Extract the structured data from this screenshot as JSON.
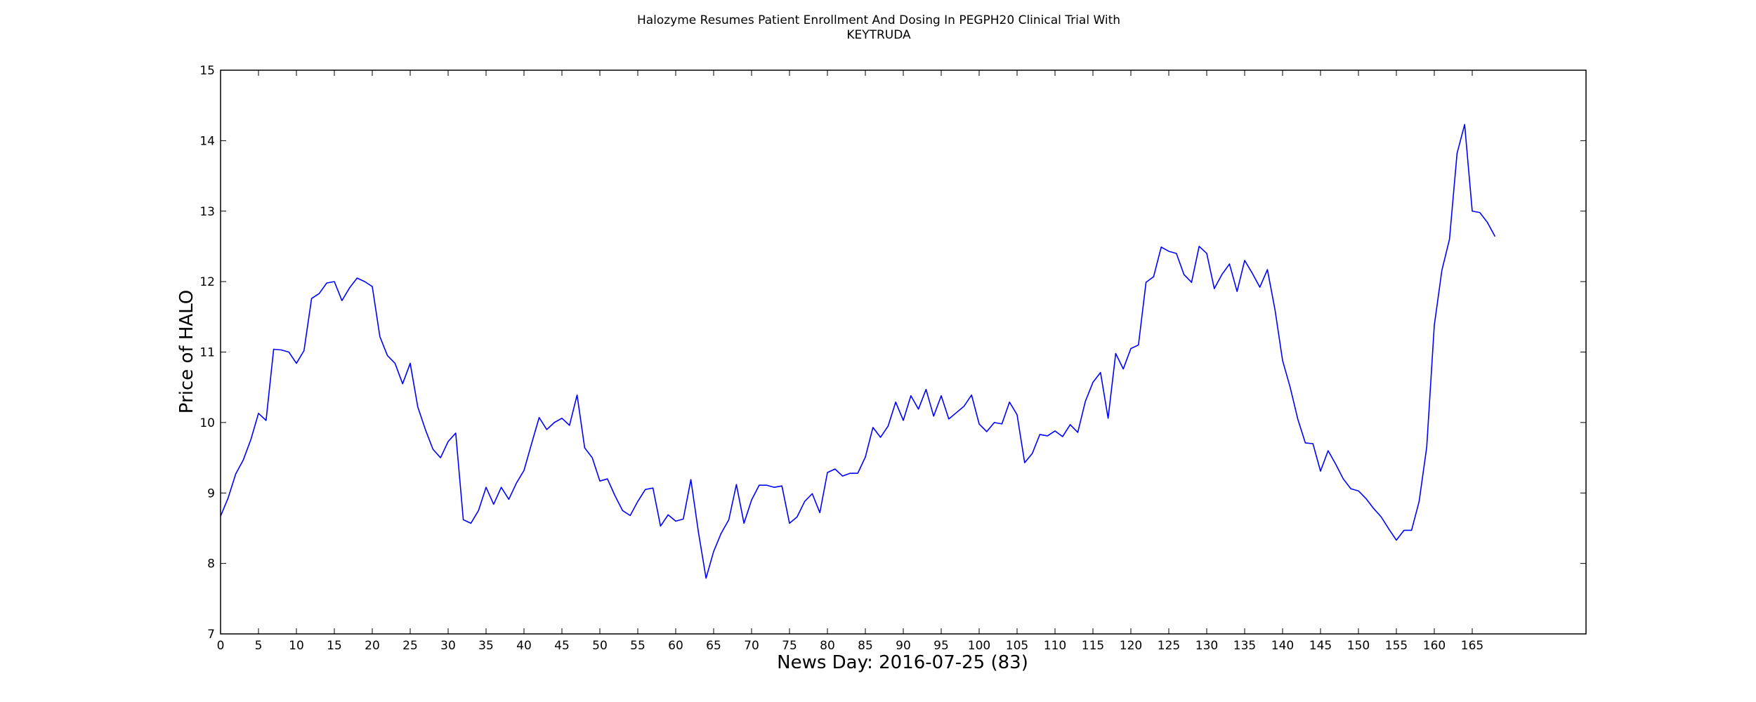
{
  "chart_data": {
    "type": "line",
    "title_lines": [
      "Halozyme Resumes Patient Enrollment And Dosing In PEGPH20 Clinical Trial With",
      "KEYTRUDA"
    ],
    "xlabel": "News Day: 2016-07-25 (83)",
    "ylabel": "Price of HALO",
    "xlim": [
      0,
      180
    ],
    "ylim": [
      7,
      15
    ],
    "xticks": [
      0,
      5,
      10,
      15,
      20,
      25,
      30,
      35,
      40,
      45,
      50,
      55,
      60,
      65,
      70,
      75,
      80,
      85,
      90,
      95,
      100,
      105,
      110,
      115,
      120,
      125,
      130,
      135,
      140,
      145,
      150,
      155,
      160,
      165
    ],
    "yticks": [
      7,
      8,
      9,
      10,
      11,
      12,
      13,
      14,
      15
    ],
    "grid": false,
    "line_color": "#0000ff",
    "series": [
      {
        "values": [
          8.67,
          8.93,
          9.27,
          9.47,
          9.76,
          10.13,
          10.03,
          11.04,
          11.03,
          11.0,
          10.84,
          11.02,
          11.76,
          11.83,
          11.98,
          12.0,
          11.73,
          11.91,
          12.05,
          12.0,
          11.93,
          11.22,
          10.95,
          10.84,
          10.55,
          10.84,
          10.22,
          9.9,
          9.62,
          9.5,
          9.73,
          9.85,
          8.62,
          8.57,
          8.75,
          9.08,
          8.84,
          9.08,
          8.91,
          9.14,
          9.32,
          9.7,
          10.07,
          9.9,
          10.0,
          10.06,
          9.96,
          10.39,
          9.64,
          9.5,
          9.17,
          9.2,
          8.96,
          8.75,
          8.68,
          8.88,
          9.05,
          9.07,
          8.53,
          8.69,
          8.6,
          8.63,
          9.19,
          8.44,
          7.79,
          8.17,
          8.43,
          8.62,
          9.12,
          8.57,
          8.9,
          9.11,
          9.11,
          9.08,
          9.1,
          8.57,
          8.66,
          8.88,
          8.99,
          8.72,
          9.29,
          9.34,
          9.24,
          9.28,
          9.28,
          9.51,
          9.93,
          9.79,
          9.95,
          10.29,
          10.03,
          10.38,
          10.19,
          10.47,
          10.09,
          10.38,
          10.05,
          10.14,
          10.23,
          10.39,
          9.98,
          9.87,
          10.0,
          9.98,
          10.29,
          10.11,
          9.43,
          9.56,
          9.83,
          9.81,
          9.88,
          9.8,
          9.97,
          9.86,
          10.3,
          10.57,
          10.71,
          10.06,
          10.98,
          10.76,
          11.05,
          11.1,
          11.99,
          12.07,
          12.49,
          12.43,
          12.4,
          12.1,
          11.99,
          12.5,
          12.4,
          11.9,
          12.1,
          12.25,
          11.86,
          12.3,
          12.12,
          11.92,
          12.17,
          11.6,
          10.88,
          10.5,
          10.05,
          9.71,
          9.7,
          9.31,
          9.6,
          9.41,
          9.2,
          9.06,
          9.03,
          8.92,
          8.78,
          8.66,
          8.49,
          8.33,
          8.47,
          8.47,
          8.88,
          9.65,
          11.38,
          12.16,
          12.6,
          13.82,
          14.23,
          13.0,
          12.98,
          12.84,
          12.64
        ]
      }
    ]
  }
}
